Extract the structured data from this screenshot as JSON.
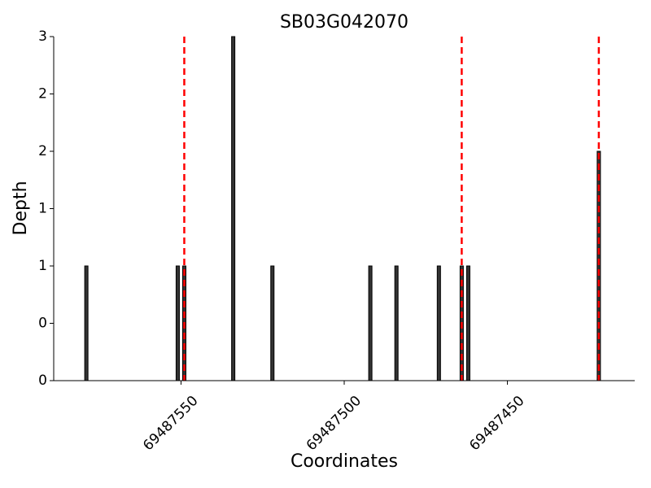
{
  "chart_data": {
    "type": "bar",
    "title": "SB03G042070",
    "xlabel": "Coordinates",
    "ylabel": "Depth",
    "x": [
      69487579,
      69487551,
      69487549,
      69487534,
      69487522,
      69487492,
      69487484,
      69487471,
      69487464,
      69487462,
      69487422
    ],
    "values": [
      1,
      1,
      1,
      3,
      1,
      1,
      1,
      1,
      1,
      1,
      2
    ],
    "color": "#333333",
    "vlines": [
      69487549,
      69487464,
      69487422
    ],
    "vline_color": "#ff0000",
    "xlim": [
      69487589,
      69487411
    ],
    "xticks": [
      69487550,
      69487500,
      69487450
    ],
    "ylim": [
      0,
      3
    ],
    "yticks": [
      0,
      {
        "value": 0.5,
        "label": "0"
      },
      1,
      {
        "value": 1.5,
        "label": "1"
      },
      2,
      {
        "value": 2.5,
        "label": "2"
      },
      3
    ]
  }
}
